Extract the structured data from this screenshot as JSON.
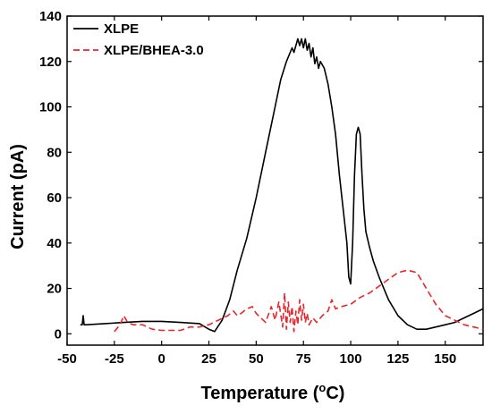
{
  "chart_data": {
    "type": "line",
    "title": "",
    "xlabel": "Temperature (",
    "xlabel_sup": "o",
    "xlabel_tail": "C)",
    "ylabel": "Current (pA)",
    "xlim": [
      -50,
      170
    ],
    "ylim": [
      -5,
      140
    ],
    "xticks": [
      -50,
      -25,
      0,
      25,
      50,
      75,
      100,
      125,
      150
    ],
    "yticks": [
      0,
      20,
      40,
      60,
      80,
      100,
      120,
      140
    ],
    "grid": false,
    "legend_position": "top-left",
    "series": [
      {
        "name": "XLPE",
        "color": "#000000",
        "dash": "solid",
        "x": [
          -43,
          -42,
          -41.5,
          -41,
          -40,
          -30,
          -20,
          -10,
          0,
          10,
          20,
          25,
          28,
          32,
          36,
          40,
          45,
          50,
          55,
          60,
          63,
          66,
          69,
          70,
          72,
          73,
          74,
          75,
          76,
          77,
          78,
          79,
          80,
          81,
          82,
          83,
          84,
          86,
          88,
          90,
          92,
          94,
          96,
          98,
          99,
          100,
          101,
          102,
          103,
          104,
          105,
          106,
          107,
          108,
          110,
          112,
          115,
          120,
          125,
          130,
          135,
          140,
          145,
          150,
          155,
          160,
          165,
          170
        ],
        "y": [
          4,
          4,
          8,
          4,
          4,
          4.5,
          5,
          5.5,
          5.5,
          5,
          4.5,
          2,
          1,
          6,
          15,
          28,
          42,
          60,
          80,
          100,
          112,
          120,
          126,
          124,
          130,
          127,
          130,
          126,
          130,
          125,
          128,
          122,
          126,
          119,
          122,
          117,
          120,
          117,
          110,
          100,
          88,
          70,
          55,
          40,
          25,
          22,
          40,
          70,
          88,
          91,
          88,
          70,
          55,
          45,
          38,
          32,
          25,
          15,
          8,
          4,
          2,
          2,
          3,
          4,
          5,
          7,
          9,
          11
        ]
      },
      {
        "name": "XLPE/BHEA-3.0",
        "color": "#e8262b",
        "dash": "dashed",
        "x": [
          -25,
          -22,
          -20,
          -18,
          -15,
          -10,
          -5,
          0,
          5,
          10,
          15,
          20,
          25,
          30,
          35,
          38,
          40,
          42,
          45,
          48,
          50,
          55,
          58,
          60,
          62,
          64,
          65,
          66,
          67,
          68,
          69,
          70,
          71,
          72,
          73,
          74,
          75,
          76,
          77,
          78,
          80,
          82,
          85,
          88,
          90,
          92,
          95,
          100,
          105,
          110,
          115,
          120,
          125,
          130,
          135,
          140,
          145,
          150,
          155,
          160,
          165,
          170
        ],
        "y": [
          1,
          4,
          8,
          5,
          4,
          4,
          2,
          1.5,
          1.5,
          1.5,
          3,
          3,
          4,
          6,
          8,
          10,
          8,
          9,
          11,
          12,
          9,
          5,
          12,
          6,
          14,
          3,
          18,
          2,
          14,
          5,
          12,
          1,
          10,
          4,
          15,
          6,
          13,
          5,
          9,
          4,
          7,
          5,
          8,
          10,
          15,
          11,
          12,
          13,
          16,
          18,
          21,
          24,
          27,
          28,
          27,
          20,
          13,
          8,
          6,
          4,
          3,
          2
        ]
      }
    ]
  }
}
